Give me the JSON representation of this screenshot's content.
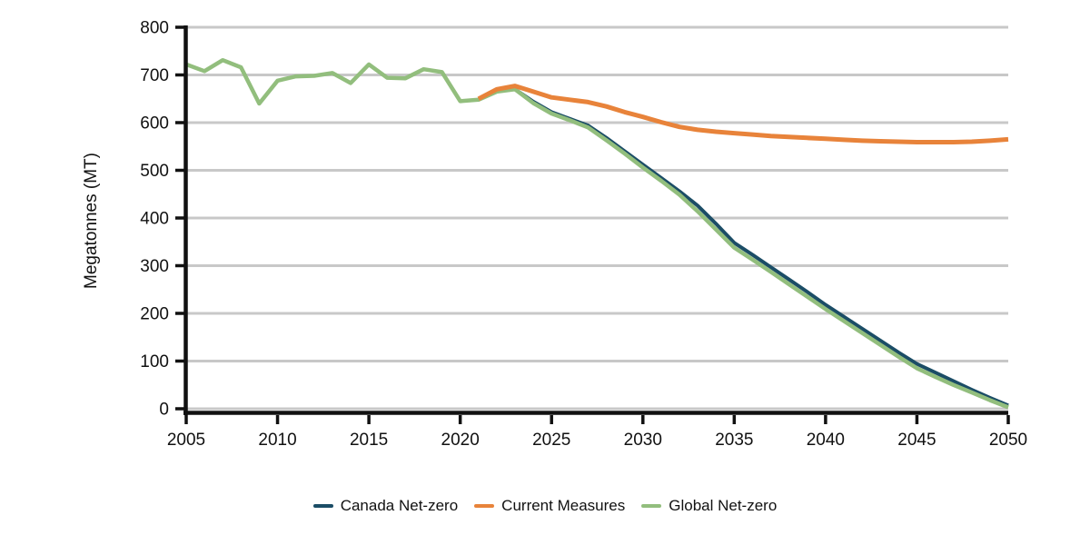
{
  "chart_data": {
    "type": "line",
    "title": "",
    "xlabel": "",
    "ylabel": "Megatonnes (MT)",
    "x_start": 2005,
    "x_end": 2050,
    "ylim": [
      0,
      800
    ],
    "y_ticks": [
      0,
      100,
      200,
      300,
      400,
      500,
      600,
      700,
      800
    ],
    "x_ticks": [
      2005,
      2010,
      2015,
      2020,
      2025,
      2030,
      2035,
      2040,
      2045,
      2050
    ],
    "grid": "horizontal",
    "legend_position": "bottom",
    "x": [
      2005,
      2006,
      2007,
      2008,
      2009,
      2010,
      2011,
      2012,
      2013,
      2014,
      2015,
      2016,
      2017,
      2018,
      2019,
      2020,
      2021,
      2022,
      2023,
      2024,
      2025,
      2026,
      2027,
      2028,
      2029,
      2030,
      2031,
      2032,
      2033,
      2034,
      2035,
      2036,
      2037,
      2038,
      2039,
      2040,
      2041,
      2042,
      2043,
      2044,
      2045,
      2046,
      2047,
      2048,
      2049,
      2050
    ],
    "series": [
      {
        "name": "Canada Net-zero",
        "color": "#1b4d66",
        "stroke_width": 4,
        "values": [
          null,
          null,
          null,
          null,
          null,
          null,
          null,
          null,
          null,
          null,
          null,
          null,
          null,
          null,
          null,
          null,
          null,
          null,
          670,
          644,
          622,
          608,
          594,
          568,
          540,
          512,
          484,
          456,
          426,
          388,
          348,
          323,
          297,
          271,
          245,
          218,
          193,
          168,
          143,
          118,
          94,
          76,
          58,
          40,
          23,
          7
        ]
      },
      {
        "name": "Global Net-zero",
        "color": "#92be7d",
        "stroke_width": 4.5,
        "values": [
          722,
          708,
          731,
          716,
          640,
          688,
          697,
          698,
          704,
          683,
          722,
          694,
          693,
          712,
          706,
          645,
          648,
          665,
          670,
          641,
          619,
          605,
          590,
          563,
          535,
          506,
          478,
          449,
          414,
          376,
          338,
          313,
          287,
          261,
          235,
          209,
          184,
          159,
          134,
          109,
          85,
          67,
          50,
          34,
          18,
          3
        ]
      },
      {
        "name": "Current Measures",
        "color": "#e8833a",
        "stroke_width": 5,
        "values": [
          null,
          null,
          null,
          null,
          null,
          null,
          null,
          null,
          null,
          null,
          null,
          null,
          null,
          null,
          null,
          null,
          650,
          670,
          677,
          665,
          653,
          648,
          643,
          634,
          622,
          612,
          601,
          591,
          585,
          581,
          578,
          575,
          572,
          570,
          568,
          566,
          564,
          562,
          561,
          560,
          559,
          559,
          559,
          560,
          562,
          565
        ]
      }
    ]
  },
  "legend": {
    "items": [
      {
        "label": "Canada Net-zero",
        "color": "#1b4d66"
      },
      {
        "label": "Current Measures",
        "color": "#e8833a"
      },
      {
        "label": "Global Net-zero",
        "color": "#92be7d"
      }
    ]
  }
}
